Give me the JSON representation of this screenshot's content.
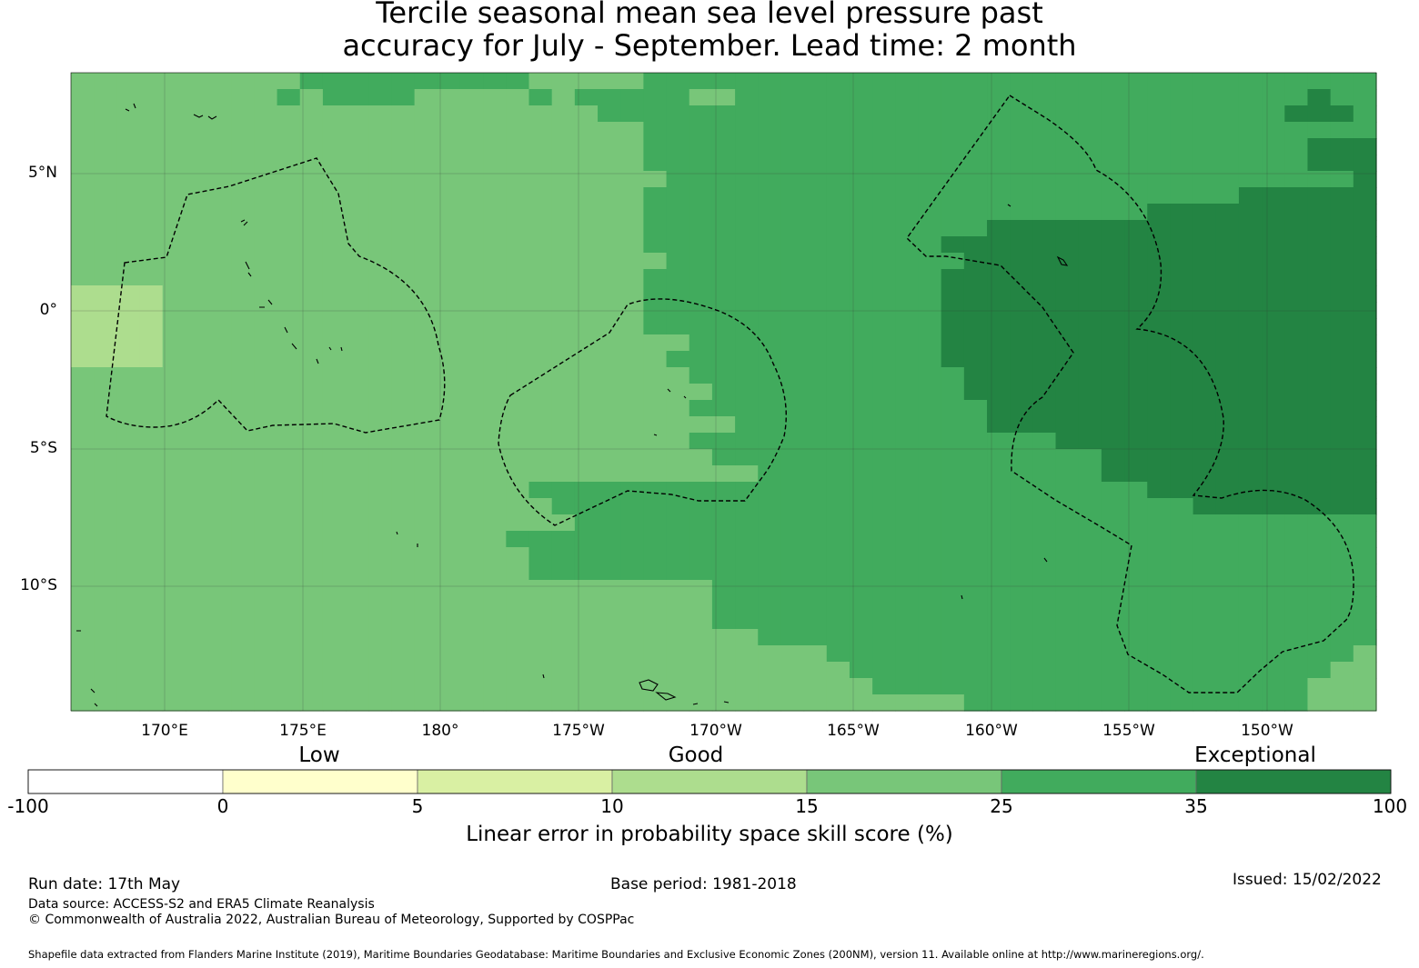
{
  "title": {
    "line1": "Tercile seasonal mean sea level pressure past",
    "line2": "accuracy for July - September. Lead time: 2 month"
  },
  "map": {
    "longitude_labels": [
      "170°E",
      "175°E",
      "180°",
      "175°W",
      "170°W",
      "165°W",
      "160°W",
      "155°W",
      "150°W"
    ],
    "latitude_labels": [
      "5°N",
      "0°",
      "5°S",
      "10°S"
    ],
    "colors": {
      "class_15_25": "#78c679",
      "class_25_35": "#41ab5d",
      "class_35_100": "#238443",
      "class_10_15": "#addd8e"
    },
    "skill_grid_legend": [
      "A=10-15",
      "B=15-25",
      "C=25-35",
      "D=35-100"
    ],
    "skill_grid": [
      "BBBBBBBBBBCCCCCCCCCCBBBBBCCCCCCCCCCCCCCCCCCCCCCCCCCCCCCCC",
      "BBBBBBBBBCBCCCCBBBBBCBCCCCCBBCCCCCCCCCCCCCCCCCCCCCCCCCDCC",
      "BBBBBBBBBBBBBBBBBBBBBBBCCCCCCCCCCCCCCCCCCCCCCCCCCCCCCDDDC",
      "BBBBBBBBBBBBBBBBBBBBBBBBBCCCCCCCCCCCCCCCCCCCCCCCCCCCCCCCC",
      "BBBBBBBBBBBBBBBBBBBBBBBBBCCCCCCCCCCCCCCCCCCCCCCCCCCCCCDDD",
      "BBBBBBBBBBBBBBBBBBBBBBBBBCCCCCCCCCCCCCCCCCCCCCCCCCCCCCDDD",
      "BBBBBBBBBBBBBBBBBBBBBBBBBBCCCCCCCCCCCCCCCCCCCCCCCCCCCCCCD",
      "BBBBBBBBBBBBBBBBBBBBBBBBBCCCCCCCCCCCCCCCCCCCCCCCCCCDDDDDD",
      "BBBBBBBBBBBBBBBBBBBBBBBBBCCCCCCCCCCCCCCCCCCCCCCDDDDDDDDDD",
      "BBBBBBBBBBBBBBBBBBBBBBBBBCCCCCCCCCCCCCCCDDDDDDDDDDDDDDDDD",
      "BBBBBBBBBBBBBBBBBBBBBBBBBCCCCCCCCCCCCCDDDDDDDDDDDDDDDDDDD",
      "BBBBBBBBBBBBBBBBBBBBBBBBBBCCCCCCCCCCCCCDDDDDDDDDDDDDDDDDD",
      "BBBBBBBBBBBBBBBBBBBBBBBBBCCCCCCCCCCCCCDDDDDDDDDDDDDDDDDDD",
      "AAAABBBBBBBBBBBBBBBBBBBBBCCCCCCCCCCCCCDDDDDDDDDDDDDDDDDDD",
      "AAAABBBBBBBBBBBBBBBBBBBBBCCCCCCCCCCCCCDDDDDDDDDDDDDDDDDDD",
      "AAAABBBBBBBBBBBBBBBBBBBBBCCCCCCCCCCCCCDDDDDDDDDDDDDDDDDDD",
      "AAAABBBBBBBBBBBBBBBBBBBBBBBCCCCCCCCCCCDDDDDDDDDDDDDDDDDDD",
      "AAAABBBBBBBBBBBBBBBBBBBBBBCCCCCCCCCCCCDDDDDDDDDDDDDDDDDDD",
      "BBBBBBBBBBBBBBBBBBBBBBBBBBBCCCCCCCCCCCCDDDDDDDDDDDDDDDDDD",
      "BBBBBBBBBBBBBBBBBBBBBBBBBBBBCCCCCCCCCCCDDDDDDDDDDDDDDDDDD",
      "BBBBBBBBBBBBBBBBBBBBBBBBBBBCCCCCCCCCCCCCDDDDDDDDDDDDDDDDD",
      "BBBBBBBBBBBBBBBBBBBBBBBBBBBBBCCCCCCCCCCCDDDDDDDDDDDDDDDDD",
      "BBBBBBBBBBBBBBBBBBBBBBBBBBBCCCCCCCCCCCCCCCCDDDDDDDDDDDDDD",
      "BBBBBBBBBBBBBBBBBBBBBBBBBBBBCCCCCCCCCCCCCCCCCDDDDDDDDDDDD",
      "BBBBBBBBBBBBBBBBBBBBBBBBBBBBBBCCCCCCCCCCCCCCCDDDDDDDDDDDD",
      "BBBBBBBBBBBBBBBBBBBBCCCCCCCCCCCCCCCCCCCCCCCCCCCDDDDDDDDDD",
      "BBBBBBBBBBBBBBBBBBBBBCCCCCCCCCCCCCCCCCCCCCCCCCCCCDDDDDDDD",
      "BBBBBBBBBBBBBBBBBBBBBBCCCCCCCCCCCCCCCCCCCCCCCCCCCCCCCCCCC",
      "BBBBBBBBBBBBBBBBBBBCCCCCCCCCCCCCCCCCCCCCCCCCCCCCCCCCCCCCC",
      "BBBBBBBBBBBBBBBBBBBBCCCCCCCCCCCCCCCCCCCCCCCCCCCCCCCCCCCCC",
      "BBBBBBBBBBBBBBBBBBBBCCCCCCCCCCCCCCCCCCCCCCCCCCCCCCCCCCCCC",
      "BBBBBBBBBBBBBBBBBBBBBBBBBBBBCCCCCCCCCCCCCCCCCCCCCCCCCCCCC",
      "BBBBBBBBBBBBBBBBBBBBBBBBBBBBCCCCCCCCCCCCCCCCCCCCCCCCCCCCC",
      "BBBBBBBBBBBBBBBBBBBBBBBBBBBBCCCCCCCCCCCCCCCCCCCCCCCCCCCCC",
      "BBBBBBBBBBBBBBBBBBBBBBBBBBBBBBCCCCCCCCCCCCCCCCCCCCCCCCCCC",
      "BBBBBBBBBBBBBBBBBBBBBBBBBBBBBBBBBCCCCCCCCCCCCCCCCCCCCCCCB",
      "BBBBBBBBBBBBBBBBBBBBBBBBBBBBBBBBBBCCCCCCCCCCCCCCCCCCCCCBB",
      "BBBBBBBBBBBBBBBBBBBBBBBBBBBBBBBBBBBCCCCCCCCCCCCCCCCCCCBBB",
      "BBBBBBBBBBBBBBBBBBBBBBBBBBBBBBBBBBBBBBBCCCCCCCCCCCCCCCBBB"
    ]
  },
  "legend": {
    "category_labels": [
      "Low",
      "Good",
      "Exceptional"
    ],
    "colors": [
      "#ffffff",
      "#ffffcc",
      "#d9f0a3",
      "#addd8e",
      "#78c679",
      "#41ab5d",
      "#238443"
    ],
    "tick_labels": [
      "-100",
      "0",
      "5",
      "10",
      "15",
      "25",
      "35",
      "100"
    ],
    "title": "Linear error in probability space skill score (%)"
  },
  "footer": {
    "run_date": "Run date: 17th May",
    "base_period": "Base period: 1981-2018",
    "issued": "Issued: 15/02/2022",
    "data_source": "Data source: ACCESS-S2 and ERA5 Climate Reanalysis",
    "copyright": "© Commonwealth of Australia 2022, Australian Bureau of Meteorology, Supported by COSPPac",
    "shapefile_note": "Shapefile data extracted from Flanders Marine Institute (2019), Maritime Boundaries Geodatabase: Maritime Boundaries and Exclusive Economic Zones (200NM), version 11. Available online at http://www.marineregions.org/."
  }
}
